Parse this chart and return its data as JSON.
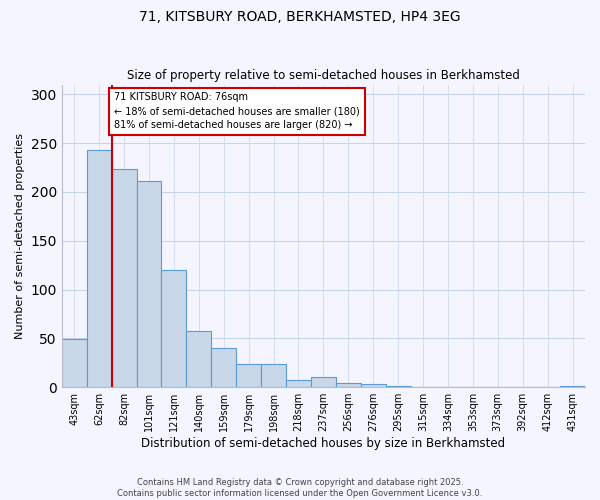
{
  "title1": "71, KITSBURY ROAD, BERKHAMSTED, HP4 3EG",
  "title2": "Size of property relative to semi-detached houses in Berkhamsted",
  "xlabel": "Distribution of semi-detached houses by size in Berkhamsted",
  "ylabel": "Number of semi-detached properties",
  "bar_labels": [
    "43sqm",
    "62sqm",
    "82sqm",
    "101sqm",
    "121sqm",
    "140sqm",
    "159sqm",
    "179sqm",
    "198sqm",
    "218sqm",
    "237sqm",
    "256sqm",
    "276sqm",
    "295sqm",
    "315sqm",
    "334sqm",
    "353sqm",
    "373sqm",
    "392sqm",
    "412sqm",
    "431sqm"
  ],
  "bar_values": [
    49,
    243,
    224,
    211,
    120,
    58,
    40,
    24,
    24,
    7,
    10,
    4,
    3,
    1,
    0,
    0,
    0,
    0,
    0,
    0,
    1
  ],
  "bar_color": "#c8d8e8",
  "bar_edge_color": "#5b9bd5",
  "vline_x": 1.5,
  "vline_color": "#cc0000",
  "annotation_text": "71 KITSBURY ROAD: 76sqm\n← 18% of semi-detached houses are smaller (180)\n81% of semi-detached houses are larger (820) →",
  "annotation_box_color": "#cc0000",
  "ylim": [
    0,
    310
  ],
  "yticks": [
    0,
    50,
    100,
    150,
    200,
    250,
    300
  ],
  "background_color": "#f5f5ff",
  "footer_text": "Contains HM Land Registry data © Crown copyright and database right 2025.\nContains public sector information licensed under the Open Government Licence v3.0.",
  "grid_color": "#c8d4e8"
}
